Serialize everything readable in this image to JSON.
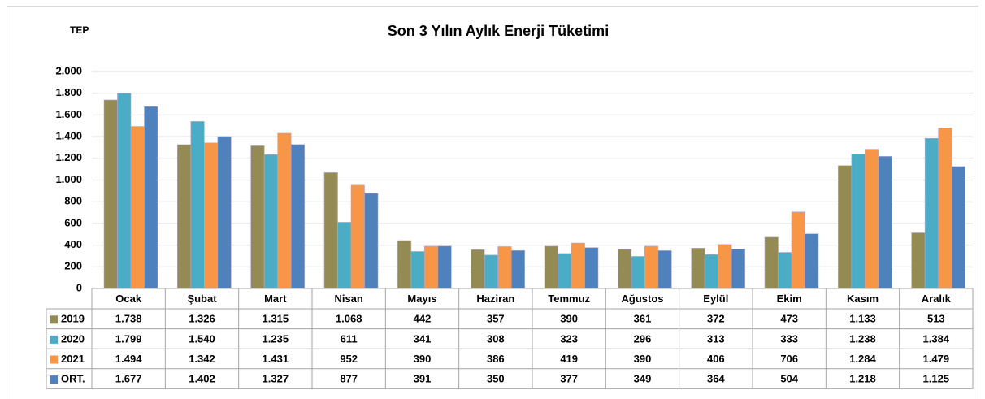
{
  "chart_data": {
    "type": "bar",
    "title": "Son 3 Yılın Aylık Enerji Tüketimi",
    "y_axis_label": "TEP",
    "categories": [
      "Ocak",
      "Şubat",
      "Mart",
      "Nisan",
      "Mayıs",
      "Haziran",
      "Temmuz",
      "Ağustos",
      "Eylül",
      "Ekim",
      "Kasım",
      "Aralık"
    ],
    "series": [
      {
        "name": "2019",
        "color": "#948a54",
        "values": [
          1738,
          1326,
          1315,
          1068,
          442,
          357,
          390,
          361,
          372,
          473,
          1133,
          513
        ],
        "value_labels": [
          "1.738",
          "1.326",
          "1.315",
          "1.068",
          "442",
          "357",
          "390",
          "361",
          "372",
          "473",
          "1.133",
          "513"
        ]
      },
      {
        "name": "2020",
        "color": "#4bacc6",
        "values": [
          1799,
          1540,
          1235,
          611,
          341,
          308,
          323,
          296,
          313,
          333,
          1238,
          1384
        ],
        "value_labels": [
          "1.799",
          "1.540",
          "1.235",
          "611",
          "341",
          "308",
          "323",
          "296",
          "313",
          "333",
          "1.238",
          "1.384"
        ]
      },
      {
        "name": "2021",
        "color": "#f79646",
        "values": [
          1494,
          1342,
          1431,
          952,
          390,
          386,
          419,
          390,
          406,
          706,
          1284,
          1479
        ],
        "value_labels": [
          "1.494",
          "1.342",
          "1.431",
          "952",
          "390",
          "386",
          "419",
          "390",
          "406",
          "706",
          "1.284",
          "1.479"
        ]
      },
      {
        "name": "ORT.",
        "color": "#4f81bd",
        "values": [
          1677,
          1402,
          1327,
          877,
          391,
          350,
          377,
          349,
          364,
          504,
          1218,
          1125
        ],
        "value_labels": [
          "1.677",
          "1.402",
          "1.327",
          "877",
          "391",
          "350",
          "377",
          "349",
          "364",
          "504",
          "1.218",
          "1.125"
        ]
      }
    ],
    "ylim": [
      0,
      2000
    ],
    "yticks": [
      0,
      200,
      400,
      600,
      800,
      {
        "value": 1000,
        "label": "1.000"
      },
      {
        "value": 1200,
        "label": "1.200"
      },
      {
        "value": 1400,
        "label": "1.400"
      },
      {
        "value": 1600,
        "label": "1.600"
      },
      {
        "value": 1800,
        "label": "1.800"
      },
      {
        "value": 2000,
        "label": "2.000"
      }
    ],
    "grid": true
  }
}
